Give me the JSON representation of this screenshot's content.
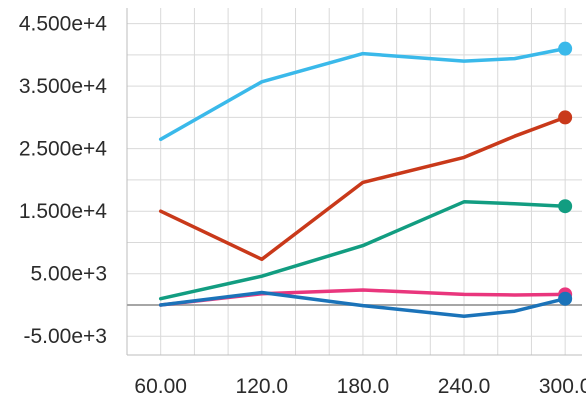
{
  "chart_data": {
    "type": "line",
    "title": "",
    "xlabel": "",
    "ylabel": "",
    "xlim": [
      40,
      310
    ],
    "ylim": [
      -8000,
      47500
    ],
    "x_ticks": [
      60,
      120,
      180,
      240,
      300
    ],
    "x_tick_labels": [
      "60.00",
      "120.0",
      "180.0",
      "240.0",
      "300.0"
    ],
    "y_ticks": [
      -5000,
      5000,
      15000,
      25000,
      35000,
      45000
    ],
    "y_tick_labels": [
      "-5.00e+3",
      "5.00e+3",
      "1.500e+4",
      "2.500e+4",
      "3.500e+4",
      "4.500e+4"
    ],
    "grid": true,
    "minor_grid_step_x": 20,
    "minor_grid_step_y": 5000,
    "legend": "none",
    "zero_line": true,
    "zero_line_color": "#a6a6a6",
    "series": [
      {
        "color": "#3ab9ea",
        "x": [
          60,
          120,
          180,
          240,
          270,
          300
        ],
        "y": [
          26500,
          35700,
          40200,
          39000,
          39400,
          41000
        ]
      },
      {
        "color": "#c9391a",
        "x": [
          60,
          120,
          180,
          240,
          270,
          300
        ],
        "y": [
          15000,
          7300,
          19600,
          23600,
          27000,
          30000
        ]
      },
      {
        "color": "#129d81",
        "x": [
          60,
          120,
          180,
          240,
          270,
          300
        ],
        "y": [
          1000,
          4600,
          9500,
          16500,
          16200,
          15800
        ]
      },
      {
        "color": "#e9367d",
        "x": [
          60,
          120,
          180,
          240,
          270,
          300
        ],
        "y": [
          0,
          1800,
          2400,
          1700,
          1600,
          1700
        ]
      },
      {
        "color": "#1b73b9",
        "x": [
          60,
          120,
          180,
          240,
          270,
          300
        ],
        "y": [
          0,
          2000,
          -100,
          -1800,
          -1000,
          1000
        ]
      }
    ]
  }
}
